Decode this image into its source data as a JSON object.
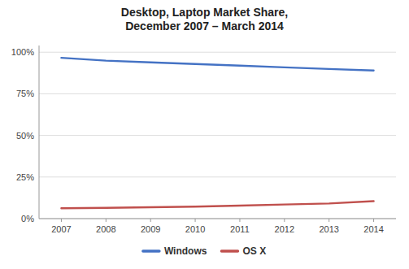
{
  "chart_data": {
    "type": "line",
    "title": "Desktop, Laptop Market Share,\nDecember 2007 – March 2014",
    "x": [
      2007,
      2008,
      2009,
      2010,
      2011,
      2012,
      2013,
      2014
    ],
    "series": [
      {
        "name": "Windows",
        "color": "#4472C4",
        "values": [
          0.966,
          0.949,
          0.939,
          0.929,
          0.919,
          0.909,
          0.899,
          0.89
        ]
      },
      {
        "name": "OS X",
        "color": "#C0504D",
        "values": [
          0.062,
          0.065,
          0.068,
          0.072,
          0.078,
          0.085,
          0.091,
          0.105
        ]
      }
    ],
    "xlim": [
      2006.5,
      2014.5
    ],
    "xticks": [
      2007,
      2008,
      2009,
      2010,
      2011,
      2012,
      2013,
      2014
    ],
    "ylim": [
      0,
      1.04
    ],
    "yticks": [
      {
        "value": 0,
        "label": "0%"
      },
      {
        "value": 0.25,
        "label": "25%"
      },
      {
        "value": 0.5,
        "label": "50%"
      },
      {
        "value": 0.75,
        "label": "75%"
      },
      {
        "value": 1.0,
        "label": "100%"
      }
    ],
    "grid": true,
    "legend": "bottom"
  }
}
